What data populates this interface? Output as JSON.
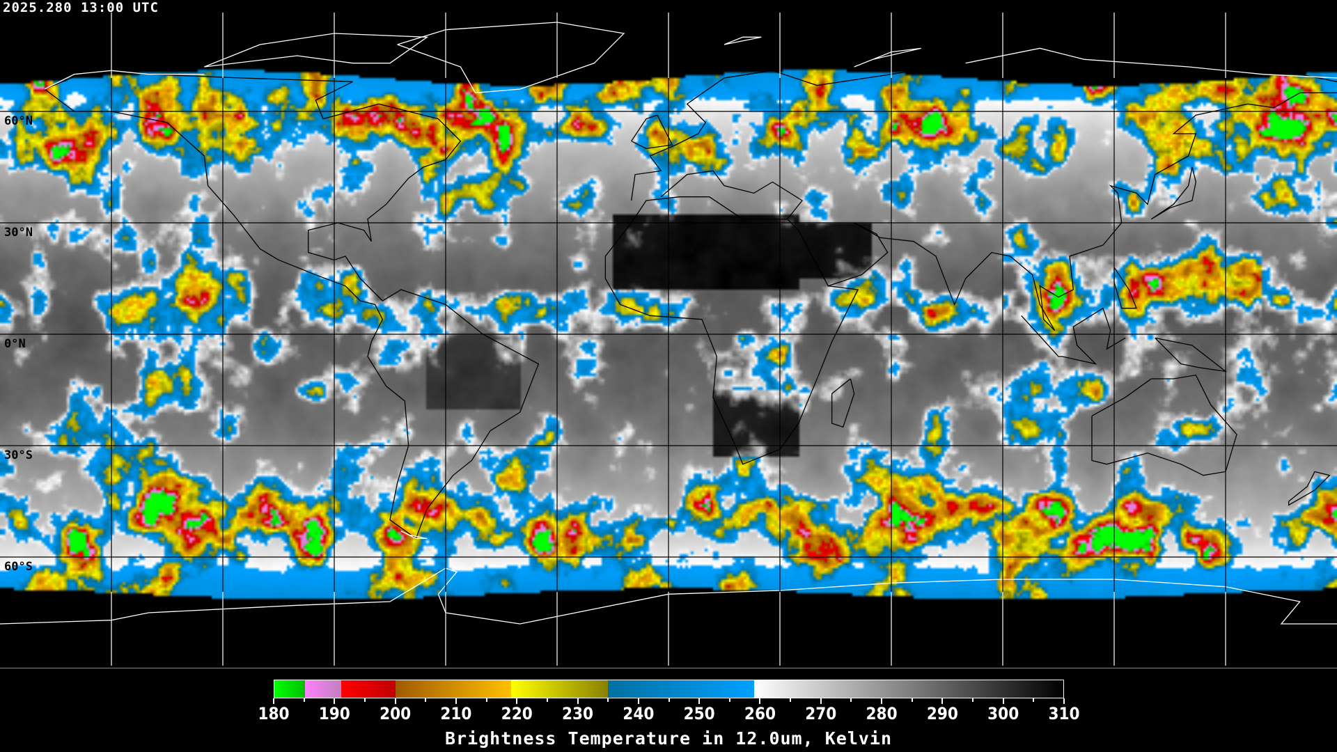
{
  "header": {
    "timestamp": "2025.280 13:00 UTC"
  },
  "map": {
    "projection": "equirectangular",
    "lat_labels": [
      "60°N",
      "30°N",
      "0°N",
      "30°S",
      "60°S"
    ],
    "grid_spacing_deg": 30
  },
  "colorbar": {
    "title": "Brightness Temperature in 12.0um, Kelvin",
    "min": 180,
    "max": 310,
    "tick_labels": [
      "180",
      "190",
      "200",
      "210",
      "220",
      "230",
      "240",
      "250",
      "260",
      "270",
      "280",
      "290",
      "300",
      "310"
    ],
    "segments": [
      {
        "from": 180,
        "to": 185,
        "colors": [
          "#00ff00",
          "#00c000"
        ]
      },
      {
        "from": 185,
        "to": 191,
        "colors": [
          "#ff80ff",
          "#c080c0"
        ]
      },
      {
        "from": 191,
        "to": 200,
        "colors": [
          "#ff0000",
          "#c00000"
        ]
      },
      {
        "from": 200,
        "to": 219,
        "colors": [
          "#a05a00",
          "#ffc000"
        ]
      },
      {
        "from": 219,
        "to": 235,
        "colors": [
          "#ffff00",
          "#888000"
        ]
      },
      {
        "from": 235,
        "to": 259,
        "colors": [
          "#0070a0",
          "#00a0ff"
        ]
      },
      {
        "from": 259,
        "to": 310,
        "colors": [
          "#ffffff",
          "#000000"
        ]
      }
    ]
  }
}
